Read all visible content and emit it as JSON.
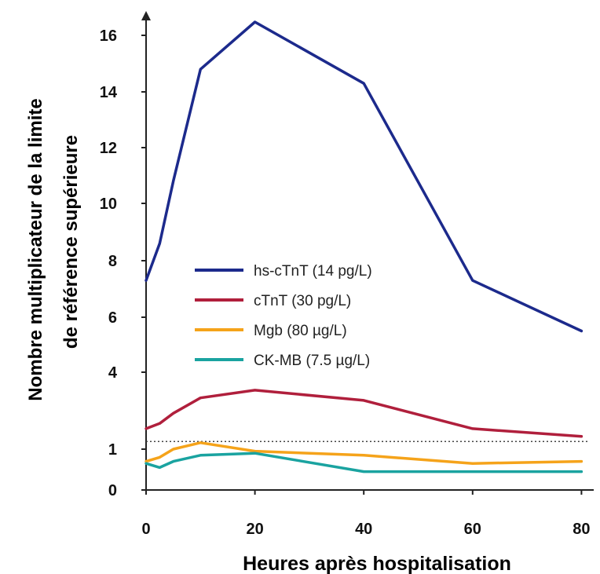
{
  "chart_data": {
    "type": "line",
    "title": "",
    "xlabel": "Heures après hospitalisation",
    "ylabel_line1": "Nombre multiplicateur de la limite",
    "ylabel_line2": "de référence supérieure",
    "xlim": [
      0,
      80
    ],
    "ylim": [
      0,
      16.5
    ],
    "x_ticks": [
      0,
      20,
      40,
      60,
      80
    ],
    "y_ticks": [
      0,
      1,
      4,
      6,
      8,
      10,
      12,
      14,
      16
    ],
    "grid": false,
    "legend_position": "center-left",
    "reference_line": {
      "y": 1.3,
      "style": "dotted"
    },
    "series": [
      {
        "name": "hs-cTnT (14 pg/L)",
        "color": "#1c2a8c",
        "x": [
          0,
          2.5,
          5,
          10,
          20,
          40,
          60,
          80
        ],
        "y": [
          7.3,
          8.6,
          10.8,
          14.8,
          16.5,
          14.3,
          7.3,
          5.5
        ]
      },
      {
        "name": "cTnT (30 pg/L)",
        "color": "#b01f3c",
        "x": [
          0,
          2.5,
          5,
          10,
          20,
          40,
          60,
          80
        ],
        "y": [
          1.8,
          2.0,
          2.4,
          3.0,
          3.3,
          2.9,
          1.8,
          1.5
        ]
      },
      {
        "name": "Mgb (80 µg/L)",
        "color": "#f5a31a",
        "x": [
          0,
          2.5,
          5,
          10,
          20,
          40,
          60,
          80
        ],
        "y": [
          0.7,
          0.8,
          1.0,
          1.25,
          0.95,
          0.85,
          0.65,
          0.7
        ]
      },
      {
        "name": "CK-MB (7.5 µg/L)",
        "color": "#1aa3a0",
        "x": [
          0,
          2.5,
          5,
          10,
          20,
          40,
          60,
          80
        ],
        "y": [
          0.65,
          0.55,
          0.7,
          0.85,
          0.9,
          0.45,
          0.45,
          0.45
        ]
      }
    ]
  }
}
